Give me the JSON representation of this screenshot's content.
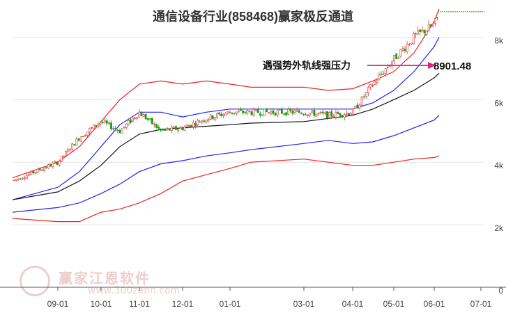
{
  "chart_data": {
    "type": "candlestick",
    "title": "通信设备行业(858468)赢家极反通道",
    "y_ticks": [
      {
        "value": 0,
        "label": "0"
      },
      {
        "value": 2000,
        "label": "2k"
      },
      {
        "value": 4000,
        "label": "4k"
      },
      {
        "value": 6000,
        "label": "6k"
      },
      {
        "value": 8000,
        "label": "8k"
      }
    ],
    "ylim": [
      0,
      8900
    ],
    "x_ticks": [
      "09-01",
      "10-01",
      "11-01",
      "12-01",
      "01-01",
      "03-01",
      "04-01",
      "05-01",
      "06-01",
      "07-01"
    ],
    "annotation": {
      "text": "遇强势外轨线强压力",
      "value_label": "8901.48",
      "value": 8901.48
    },
    "colors": {
      "up": "#e03030",
      "down": "#10a010",
      "outer_band": "#ee2222",
      "inner_band": "#2222ee",
      "mid_line": "#111111",
      "arrow": "#e0207a"
    },
    "bands": [
      {
        "name": "outer_upper",
        "x": [
          "08-15",
          "09-01",
          "09-15",
          "10-01",
          "10-15",
          "11-01",
          "11-15",
          "12-01",
          "12-15",
          "01-01",
          "01-15",
          "03-01",
          "03-15",
          "04-01",
          "04-15",
          "05-01",
          "05-15",
          "06-01",
          "06-05"
        ],
        "values": [
          3500,
          4000,
          4500,
          5300,
          6000,
          6500,
          6600,
          6500,
          6600,
          6500,
          6400,
          6400,
          6300,
          6350,
          6600,
          6900,
          7500,
          8500,
          8900
        ]
      },
      {
        "name": "inner_upper",
        "x": [
          "08-15",
          "09-01",
          "09-15",
          "10-01",
          "10-15",
          "11-01",
          "11-15",
          "12-01",
          "12-15",
          "01-01",
          "01-15",
          "03-01",
          "03-15",
          "04-01",
          "04-15",
          "05-01",
          "05-15",
          "06-01",
          "06-05"
        ],
        "values": [
          2800,
          3200,
          3700,
          4500,
          5200,
          5600,
          5600,
          5450,
          5600,
          5700,
          5700,
          5700,
          5700,
          5700,
          5900,
          6300,
          6900,
          7700,
          8000
        ]
      },
      {
        "name": "middle",
        "x": [
          "08-15",
          "09-01",
          "09-15",
          "10-01",
          "10-15",
          "11-01",
          "11-15",
          "12-01",
          "12-15",
          "01-01",
          "01-15",
          "03-01",
          "03-15",
          "04-01",
          "04-15",
          "05-01",
          "05-15",
          "06-01",
          "06-05"
        ],
        "values": [
          2800,
          3050,
          3400,
          3900,
          4500,
          4900,
          5050,
          5100,
          5150,
          5200,
          5250,
          5300,
          5400,
          5500,
          5700,
          6000,
          6300,
          6700,
          6850
        ]
      },
      {
        "name": "inner_lower",
        "x": [
          "08-15",
          "09-01",
          "09-15",
          "10-01",
          "10-15",
          "11-01",
          "11-15",
          "12-01",
          "12-15",
          "01-01",
          "01-15",
          "03-01",
          "03-15",
          "04-01",
          "04-15",
          "05-01",
          "05-15",
          "06-01",
          "06-05"
        ],
        "values": [
          2400,
          2550,
          2700,
          3000,
          3300,
          3700,
          3950,
          4050,
          4200,
          4300,
          4400,
          4600,
          4700,
          4600,
          4650,
          4850,
          5100,
          5350,
          5500
        ]
      },
      {
        "name": "outer_lower",
        "x": [
          "08-15",
          "09-01",
          "09-15",
          "10-01",
          "10-15",
          "11-01",
          "11-15",
          "12-01",
          "12-15",
          "01-01",
          "01-15",
          "03-01",
          "03-15",
          "04-01",
          "04-15",
          "05-01",
          "05-15",
          "06-01",
          "06-05"
        ],
        "values": [
          2200,
          2100,
          2100,
          2400,
          2500,
          2700,
          3000,
          3400,
          3600,
          3800,
          4000,
          4100,
          4000,
          3900,
          3900,
          4000,
          4100,
          4150,
          4200
        ]
      }
    ],
    "candle_path": {
      "x": [
        "08-15",
        "09-01",
        "09-15",
        "10-01",
        "10-15",
        "11-01",
        "11-15",
        "12-01",
        "12-15",
        "01-01",
        "01-15",
        "03-01",
        "03-15",
        "04-01",
        "04-15",
        "05-01",
        "05-15",
        "06-01",
        "06-05"
      ],
      "values": [
        3400,
        4000,
        4800,
        5300,
        5000,
        5600,
        5000,
        5100,
        5400,
        5600,
        5600,
        5600,
        5500,
        5600,
        6500,
        7300,
        8000,
        8400,
        8700
      ]
    }
  }
}
